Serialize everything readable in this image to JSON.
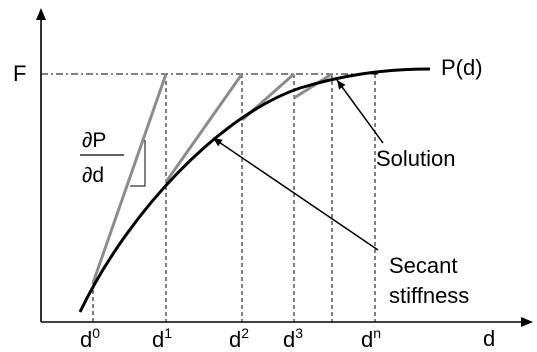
{
  "figure": {
    "curve_label": "P(d)",
    "force_label": "F",
    "x_axis_label": "d",
    "solution_label": "Solution",
    "secant_label_line1": "Secant",
    "secant_label_line2": "stiffness",
    "derivative_numerator": "∂P",
    "derivative_denominator": "∂d",
    "iterates": [
      {
        "base": "d",
        "sup": "0"
      },
      {
        "base": "d",
        "sup": "1"
      },
      {
        "base": "d",
        "sup": "2"
      },
      {
        "base": "d",
        "sup": "3"
      },
      {
        "base": "d",
        "sup": "n"
      }
    ]
  },
  "colors": {
    "axis": "#000000",
    "curve": "#000000",
    "secant_lines": "#8c8c8c",
    "dashed_guides": "#000000",
    "background": "#ffffff"
  }
}
